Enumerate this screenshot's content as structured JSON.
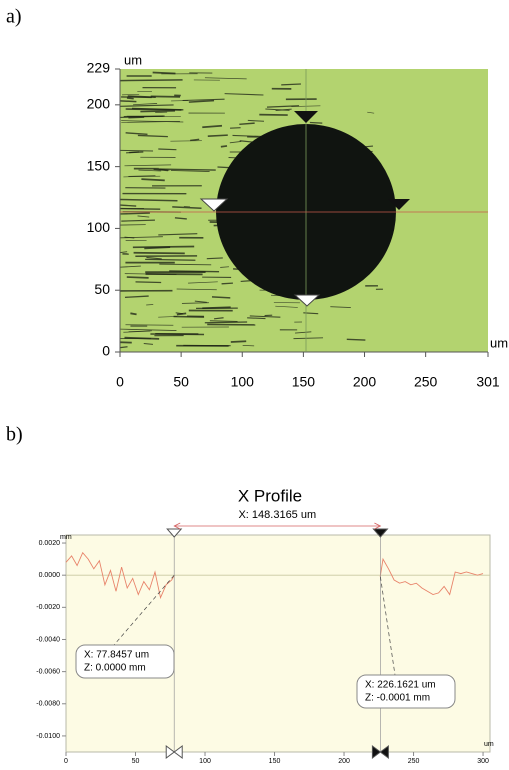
{
  "figure_labels": [
    "a)",
    "b)"
  ],
  "chart_data": [
    {
      "type": "image",
      "x_unit": "um",
      "y_unit": "um",
      "xlim": [
        0,
        301
      ],
      "xticks": [
        0,
        50,
        100,
        150,
        200,
        250,
        301
      ],
      "ylim": [
        0,
        229
      ],
      "yticks": [
        0,
        50,
        100,
        150,
        200,
        229
      ]
    },
    {
      "type": "line",
      "title": "X Profile",
      "x_unit": "um",
      "y_unit": "mm",
      "xlim": [
        0,
        305
      ],
      "xticks": [
        0,
        50,
        100,
        150,
        200,
        250,
        300
      ],
      "ylim": [
        -0.011,
        0.0025
      ],
      "yticks": [
        {
          "value": 0.002,
          "label": "0.0020"
        },
        {
          "value": 0,
          "label": "0.0000"
        },
        {
          "value": -0.002,
          "label": "-0.0020"
        },
        {
          "value": -0.004,
          "label": "-0.0040"
        },
        {
          "value": -0.006,
          "label": "-0.0060"
        },
        {
          "value": -0.008,
          "label": "-0.0080"
        },
        {
          "value": -0.01,
          "label": "-0.0100"
        }
      ],
      "x": [
        0,
        4,
        8,
        12,
        16,
        20,
        24,
        28,
        32,
        36,
        40,
        44,
        48,
        52,
        56,
        60,
        64,
        68,
        72,
        76,
        78,
        150,
        226,
        228,
        232,
        236,
        240,
        244,
        248,
        252,
        256,
        260,
        264,
        268,
        272,
        276,
        280,
        284,
        288,
        292,
        296,
        300
      ],
      "series": [
        {
          "color": "#e8836a",
          "values": [
            0.0008,
            0.0012,
            0.0006,
            0.0014,
            0.001,
            0.0004,
            0.0009,
            -0.0006,
            0.0003,
            -0.001,
            0.0005,
            -0.0008,
            -0.0002,
            -0.0012,
            -0.0004,
            -0.0009,
            0.0002,
            -0.0014,
            -0.0006,
            -0.0003,
            0,
            null,
            -0.0001,
            0.001,
            0.0004,
            -0.0003,
            -0.0005,
            -0.0004,
            -0.0006,
            -0.0005,
            -0.0008,
            -0.001,
            -0.0012,
            -0.0011,
            -0.0007,
            -0.0012,
            0.0002,
            0.0001,
            0.0002,
            0.0001,
            0,
            0.0001
          ]
        }
      ],
      "cursors": [
        {
          "x": 77.8457,
          "z": 0,
          "x_label": "X: 77.8457 um",
          "z_label": "Z:  0.0000 mm"
        },
        {
          "x": 226.1621,
          "z": -0.0001,
          "x_label": "X: 226.1621 um",
          "z_label": "Z: -0.0001 mm"
        }
      ],
      "distance": {
        "value": 148.3165,
        "label": "X: 148.3165 um"
      }
    }
  ]
}
